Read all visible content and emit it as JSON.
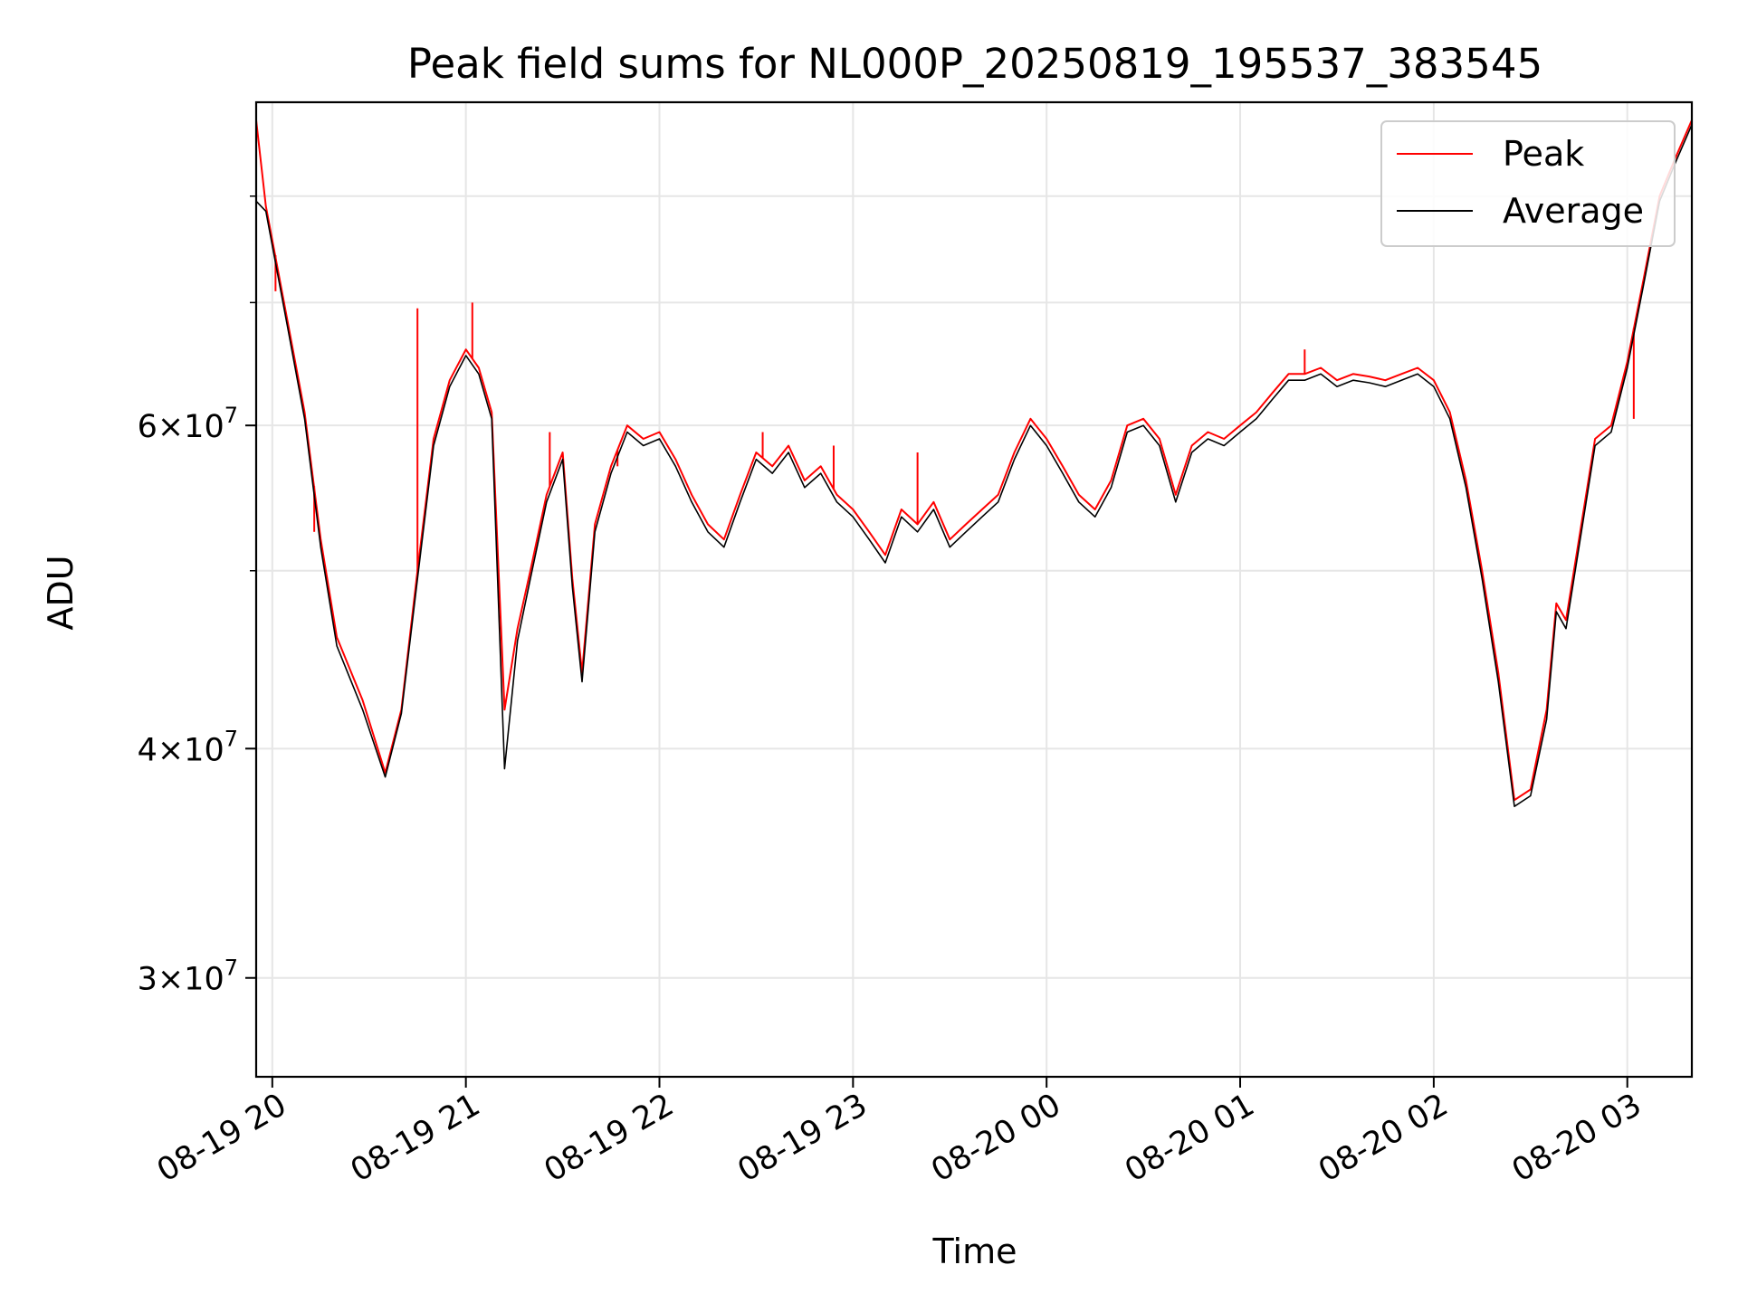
{
  "chart_data": {
    "type": "line",
    "title": "Peak field sums for NL000P_20250819_195537_383545",
    "xlabel": "Time",
    "ylabel": "ADU",
    "yscale": "log",
    "ylim": [
      26500000,
      90000000
    ],
    "xlim": [
      "2025-08-19 19:55",
      "2025-08-20 03:20"
    ],
    "grid": true,
    "legend": "upper right",
    "x_ticks": [
      {
        "value": "2025-08-19 20:00",
        "label": "08-19 20"
      },
      {
        "value": "2025-08-19 21:00",
        "label": "08-19 21"
      },
      {
        "value": "2025-08-19 22:00",
        "label": "08-19 22"
      },
      {
        "value": "2025-08-19 23:00",
        "label": "08-19 23"
      },
      {
        "value": "2025-08-20 00:00",
        "label": "08-20 00"
      },
      {
        "value": "2025-08-20 01:00",
        "label": "08-20 01"
      },
      {
        "value": "2025-08-20 02:00",
        "label": "08-20 02"
      },
      {
        "value": "2025-08-20 03:00",
        "label": "08-20 03"
      }
    ],
    "y_ticks": [
      {
        "value": 30000000,
        "mantissa": "3",
        "exponent": "7"
      },
      {
        "value": 40000000,
        "mantissa": "4",
        "exponent": "7"
      },
      {
        "value": 60000000,
        "mantissa": "6",
        "exponent": "7"
      }
    ],
    "y_minor_ticks": [
      50000000,
      70000000,
      80000000
    ],
    "series": [
      {
        "name": "Peak",
        "color": "#ff0000",
        "x": [
          "2025-08-19 19:55",
          "2025-08-19 19:58",
          "2025-08-19 20:05",
          "2025-08-19 20:10",
          "2025-08-19 20:15",
          "2025-08-19 20:20",
          "2025-08-19 20:28",
          "2025-08-19 20:35",
          "2025-08-19 20:40",
          "2025-08-19 20:45",
          "2025-08-19 20:50",
          "2025-08-19 20:55",
          "2025-08-19 21:00",
          "2025-08-19 21:04",
          "2025-08-19 21:08",
          "2025-08-19 21:12",
          "2025-08-19 21:16",
          "2025-08-19 21:20",
          "2025-08-19 21:25",
          "2025-08-19 21:30",
          "2025-08-19 21:33",
          "2025-08-19 21:36",
          "2025-08-19 21:40",
          "2025-08-19 21:45",
          "2025-08-19 21:50",
          "2025-08-19 21:55",
          "2025-08-19 22:00",
          "2025-08-19 22:05",
          "2025-08-19 22:10",
          "2025-08-19 22:15",
          "2025-08-19 22:20",
          "2025-08-19 22:25",
          "2025-08-19 22:30",
          "2025-08-19 22:35",
          "2025-08-19 22:40",
          "2025-08-19 22:45",
          "2025-08-19 22:50",
          "2025-08-19 22:55",
          "2025-08-19 23:00",
          "2025-08-19 23:05",
          "2025-08-19 23:10",
          "2025-08-19 23:15",
          "2025-08-19 23:20",
          "2025-08-19 23:25",
          "2025-08-19 23:30",
          "2025-08-19 23:35",
          "2025-08-19 23:40",
          "2025-08-19 23:45",
          "2025-08-19 23:50",
          "2025-08-19 23:55",
          "2025-08-20 00:00",
          "2025-08-20 00:05",
          "2025-08-20 00:10",
          "2025-08-20 00:15",
          "2025-08-20 00:20",
          "2025-08-20 00:25",
          "2025-08-20 00:30",
          "2025-08-20 00:35",
          "2025-08-20 00:40",
          "2025-08-20 00:45",
          "2025-08-20 00:50",
          "2025-08-20 00:55",
          "2025-08-20 01:00",
          "2025-08-20 01:05",
          "2025-08-20 01:10",
          "2025-08-20 01:15",
          "2025-08-20 01:20",
          "2025-08-20 01:25",
          "2025-08-20 01:30",
          "2025-08-20 01:35",
          "2025-08-20 01:40",
          "2025-08-20 01:45",
          "2025-08-20 01:50",
          "2025-08-20 01:55",
          "2025-08-20 02:00",
          "2025-08-20 02:05",
          "2025-08-20 02:10",
          "2025-08-20 02:15",
          "2025-08-20 02:20",
          "2025-08-20 02:25",
          "2025-08-20 02:30",
          "2025-08-20 02:35",
          "2025-08-20 02:38",
          "2025-08-20 02:41",
          "2025-08-20 02:45",
          "2025-08-20 02:50",
          "2025-08-20 02:55",
          "2025-08-20 03:00",
          "2025-08-20 03:05",
          "2025-08-20 03:10",
          "2025-08-20 03:15",
          "2025-08-20 03:20"
        ],
        "values": [
          88000000,
          79000000,
          68000000,
          61000000,
          52000000,
          46000000,
          42500000,
          38800000,
          42000000,
          50000000,
          59000000,
          63500000,
          66000000,
          64500000,
          61000000,
          42000000,
          46500000,
          50000000,
          55000000,
          58000000,
          49500000,
          44000000,
          53000000,
          57000000,
          60000000,
          59000000,
          59500000,
          57500000,
          55000000,
          53000000,
          52000000,
          55000000,
          58000000,
          57000000,
          58500000,
          56000000,
          57000000,
          55000000,
          54000000,
          52500000,
          51000000,
          54000000,
          53000000,
          54500000,
          52000000,
          53000000,
          54000000,
          55000000,
          58000000,
          60500000,
          59000000,
          57000000,
          55000000,
          54000000,
          56000000,
          60000000,
          60500000,
          59000000,
          55000000,
          58500000,
          59500000,
          59000000,
          60000000,
          61000000,
          62500000,
          64000000,
          64000000,
          64500000,
          63500000,
          64000000,
          63800000,
          63500000,
          64000000,
          64500000,
          63500000,
          61000000,
          56000000,
          50000000,
          44000000,
          37500000,
          38000000,
          42000000,
          48000000,
          47000000,
          52000000,
          59000000,
          60000000,
          65000000,
          72000000,
          80000000,
          84000000,
          88000000
        ],
        "spikes": [
          {
            "x": "2025-08-19 20:01",
            "value": 71000000
          },
          {
            "x": "2025-08-19 20:13",
            "value": 52500000
          },
          {
            "x": "2025-08-19 20:45",
            "value": 69500000
          },
          {
            "x": "2025-08-19 21:02",
            "value": 70000000
          },
          {
            "x": "2025-08-19 21:26",
            "value": 59500000
          },
          {
            "x": "2025-08-19 21:47",
            "value": 57000000
          },
          {
            "x": "2025-08-19 22:32",
            "value": 59500000
          },
          {
            "x": "2025-08-19 22:54",
            "value": 58500000
          },
          {
            "x": "2025-08-19 23:20",
            "value": 58000000
          },
          {
            "x": "2025-08-20 01:20",
            "value": 66000000
          },
          {
            "x": "2025-08-20 03:02",
            "value": 60500000
          }
        ]
      },
      {
        "name": "Average",
        "color": "#000000",
        "x": [
          "2025-08-19 19:55",
          "2025-08-19 19:58",
          "2025-08-19 20:05",
          "2025-08-19 20:10",
          "2025-08-19 20:15",
          "2025-08-19 20:20",
          "2025-08-19 20:28",
          "2025-08-19 20:35",
          "2025-08-19 20:40",
          "2025-08-19 20:45",
          "2025-08-19 20:50",
          "2025-08-19 20:55",
          "2025-08-19 21:00",
          "2025-08-19 21:04",
          "2025-08-19 21:08",
          "2025-08-19 21:12",
          "2025-08-19 21:16",
          "2025-08-19 21:20",
          "2025-08-19 21:25",
          "2025-08-19 21:30",
          "2025-08-19 21:33",
          "2025-08-19 21:36",
          "2025-08-19 21:40",
          "2025-08-19 21:45",
          "2025-08-19 21:50",
          "2025-08-19 21:55",
          "2025-08-19 22:00",
          "2025-08-19 22:05",
          "2025-08-19 22:10",
          "2025-08-19 22:15",
          "2025-08-19 22:20",
          "2025-08-19 22:25",
          "2025-08-19 22:30",
          "2025-08-19 22:35",
          "2025-08-19 22:40",
          "2025-08-19 22:45",
          "2025-08-19 22:50",
          "2025-08-19 22:55",
          "2025-08-19 23:00",
          "2025-08-19 23:05",
          "2025-08-19 23:10",
          "2025-08-19 23:15",
          "2025-08-19 23:20",
          "2025-08-19 23:25",
          "2025-08-19 23:30",
          "2025-08-19 23:35",
          "2025-08-19 23:40",
          "2025-08-19 23:45",
          "2025-08-19 23:50",
          "2025-08-19 23:55",
          "2025-08-20 00:00",
          "2025-08-20 00:05",
          "2025-08-20 00:10",
          "2025-08-20 00:15",
          "2025-08-20 00:20",
          "2025-08-20 00:25",
          "2025-08-20 00:30",
          "2025-08-20 00:35",
          "2025-08-20 00:40",
          "2025-08-20 00:45",
          "2025-08-20 00:50",
          "2025-08-20 00:55",
          "2025-08-20 01:00",
          "2025-08-20 01:05",
          "2025-08-20 01:10",
          "2025-08-20 01:15",
          "2025-08-20 01:20",
          "2025-08-20 01:25",
          "2025-08-20 01:30",
          "2025-08-20 01:35",
          "2025-08-20 01:40",
          "2025-08-20 01:45",
          "2025-08-20 01:50",
          "2025-08-20 01:55",
          "2025-08-20 02:00",
          "2025-08-20 02:05",
          "2025-08-20 02:10",
          "2025-08-20 02:15",
          "2025-08-20 02:20",
          "2025-08-20 02:25",
          "2025-08-20 02:30",
          "2025-08-20 02:35",
          "2025-08-20 02:38",
          "2025-08-20 02:41",
          "2025-08-20 02:45",
          "2025-08-20 02:50",
          "2025-08-20 02:55",
          "2025-08-20 03:00",
          "2025-08-20 03:05",
          "2025-08-20 03:10",
          "2025-08-20 03:15",
          "2025-08-20 03:20"
        ],
        "values": [
          79500000,
          78500000,
          67500000,
          60500000,
          51500000,
          45500000,
          42000000,
          38600000,
          41800000,
          49500000,
          58500000,
          63000000,
          65500000,
          64000000,
          60500000,
          39000000,
          45800000,
          49500000,
          54500000,
          57500000,
          49000000,
          43500000,
          52500000,
          56500000,
          59500000,
          58500000,
          59000000,
          57000000,
          54500000,
          52500000,
          51500000,
          54500000,
          57500000,
          56500000,
          58000000,
          55500000,
          56500000,
          54500000,
          53500000,
          52000000,
          50500000,
          53500000,
          52500000,
          54000000,
          51500000,
          52500000,
          53500000,
          54500000,
          57500000,
          60000000,
          58500000,
          56500000,
          54500000,
          53500000,
          55500000,
          59500000,
          60000000,
          58500000,
          54500000,
          58000000,
          59000000,
          58500000,
          59500000,
          60500000,
          62000000,
          63500000,
          63500000,
          64000000,
          63000000,
          63500000,
          63300000,
          63000000,
          63500000,
          64000000,
          63000000,
          60500000,
          55500000,
          49500000,
          43500000,
          37200000,
          37700000,
          41500000,
          47500000,
          46500000,
          51500000,
          58500000,
          59500000,
          64500000,
          71500000,
          79500000,
          83500000,
          87500000
        ]
      }
    ]
  }
}
